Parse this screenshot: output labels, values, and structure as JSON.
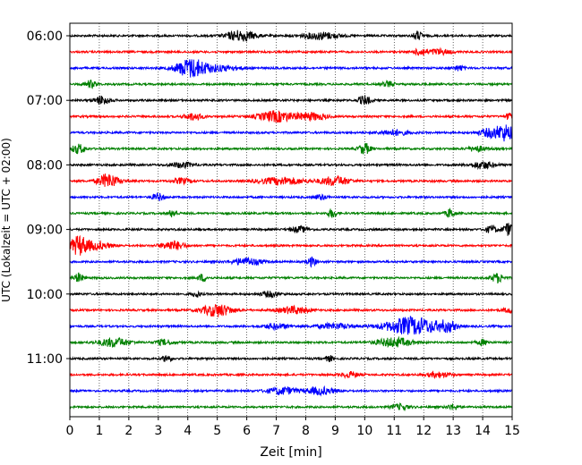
{
  "chart_data": {
    "type": "line",
    "title": "",
    "xlabel": "Zeit  [min]",
    "ylabel": "UTC (Lokalzeit = UTC + 02:00)",
    "xlim": [
      0,
      15
    ],
    "x_ticks": [
      "0",
      "1",
      "2",
      "3",
      "4",
      "5",
      "6",
      "7",
      "8",
      "9",
      "10",
      "11",
      "12",
      "13",
      "14",
      "15"
    ],
    "y_ticks": [
      "06:00",
      "07:00",
      "08:00",
      "09:00",
      "10:00",
      "11:00"
    ],
    "grid": "vertical dotted",
    "colors": [
      "#000000",
      "#ff0000",
      "#0000ff",
      "#008000"
    ],
    "series": [
      {
        "trace_start": "06:00",
        "bursts": [
          [
            5.8,
            0.5,
            6
          ],
          [
            8.5,
            0.6,
            4
          ],
          [
            11.8,
            0.15,
            5
          ]
        ]
      },
      {
        "trace_start": "06:15",
        "bursts": [
          [
            11.9,
            0.2,
            4
          ],
          [
            12.5,
            0.4,
            3
          ]
        ]
      },
      {
        "trace_start": "06:30",
        "bursts": [
          [
            4.1,
            0.5,
            10
          ],
          [
            5.0,
            0.8,
            3
          ],
          [
            13.2,
            0.15,
            3
          ]
        ]
      },
      {
        "trace_start": "06:45",
        "bursts": [
          [
            0.7,
            0.2,
            4
          ],
          [
            10.8,
            0.2,
            3
          ]
        ]
      },
      {
        "trace_start": "07:00",
        "bursts": [
          [
            1.1,
            0.25,
            5
          ],
          [
            10.0,
            0.2,
            5
          ]
        ]
      },
      {
        "trace_start": "07:15",
        "bursts": [
          [
            4.2,
            0.3,
            4
          ],
          [
            7.0,
            0.6,
            6
          ],
          [
            8.2,
            0.5,
            4
          ],
          [
            14.9,
            0.1,
            4
          ]
        ]
      },
      {
        "trace_start": "07:30",
        "bursts": [
          [
            11.0,
            0.5,
            3
          ],
          [
            14.3,
            0.4,
            5
          ],
          [
            14.8,
            0.3,
            8
          ]
        ]
      },
      {
        "trace_start": "07:45",
        "bursts": [
          [
            0.3,
            0.25,
            5
          ],
          [
            10.0,
            0.2,
            6
          ],
          [
            13.8,
            0.3,
            3
          ]
        ]
      },
      {
        "trace_start": "08:00",
        "bursts": [
          [
            3.8,
            0.4,
            3
          ],
          [
            14.0,
            0.4,
            4
          ]
        ]
      },
      {
        "trace_start": "08:15",
        "bursts": [
          [
            1.3,
            0.35,
            8
          ],
          [
            3.8,
            0.3,
            3
          ],
          [
            7.2,
            0.8,
            4
          ],
          [
            9.0,
            0.5,
            5
          ]
        ]
      },
      {
        "trace_start": "08:30",
        "bursts": [
          [
            3.0,
            0.2,
            4
          ],
          [
            8.5,
            0.2,
            3
          ]
        ]
      },
      {
        "trace_start": "08:45",
        "bursts": [
          [
            3.5,
            0.15,
            4
          ],
          [
            8.9,
            0.15,
            5
          ],
          [
            12.9,
            0.15,
            5
          ]
        ]
      },
      {
        "trace_start": "09:00",
        "bursts": [
          [
            7.8,
            0.3,
            3
          ],
          [
            14.3,
            0.2,
            4
          ],
          [
            14.9,
            0.2,
            7
          ]
        ]
      },
      {
        "trace_start": "09:15",
        "bursts": [
          [
            0.3,
            0.3,
            10
          ],
          [
            3.5,
            0.4,
            5
          ],
          [
            0.9,
            0.5,
            4
          ]
        ]
      },
      {
        "trace_start": "09:30",
        "bursts": [
          [
            6.0,
            0.5,
            4
          ],
          [
            8.2,
            0.15,
            5
          ]
        ]
      },
      {
        "trace_start": "09:45",
        "bursts": [
          [
            0.3,
            0.15,
            5
          ],
          [
            4.5,
            0.15,
            4
          ],
          [
            14.5,
            0.2,
            5
          ]
        ]
      },
      {
        "trace_start": "10:00",
        "bursts": [
          [
            4.3,
            0.15,
            3
          ],
          [
            6.8,
            0.3,
            3
          ]
        ]
      },
      {
        "trace_start": "10:15",
        "bursts": [
          [
            5.0,
            0.5,
            7
          ],
          [
            7.6,
            0.5,
            4
          ],
          [
            14.9,
            0.2,
            3
          ]
        ]
      },
      {
        "trace_start": "10:30",
        "bursts": [
          [
            7.0,
            0.4,
            3
          ],
          [
            9.0,
            0.6,
            3
          ],
          [
            11.6,
            0.9,
            10
          ],
          [
            12.8,
            0.3,
            5
          ]
        ]
      },
      {
        "trace_start": "10:45",
        "bursts": [
          [
            1.5,
            0.5,
            5
          ],
          [
            3.2,
            0.3,
            3
          ],
          [
            11.0,
            0.6,
            5
          ],
          [
            14.0,
            0.2,
            3
          ]
        ]
      },
      {
        "trace_start": "11:00",
        "bursts": [
          [
            3.3,
            0.15,
            4
          ],
          [
            8.8,
            0.15,
            3
          ]
        ]
      },
      {
        "trace_start": "11:15",
        "bursts": [
          [
            9.5,
            0.3,
            3
          ],
          [
            12.5,
            0.4,
            3
          ]
        ]
      },
      {
        "trace_start": "11:30",
        "bursts": [
          [
            7.2,
            0.5,
            4
          ],
          [
            8.5,
            0.5,
            4
          ]
        ]
      },
      {
        "trace_start": "11:45",
        "bursts": [
          [
            11.2,
            0.3,
            3
          ],
          [
            13.0,
            0.2,
            3
          ]
        ]
      }
    ]
  }
}
